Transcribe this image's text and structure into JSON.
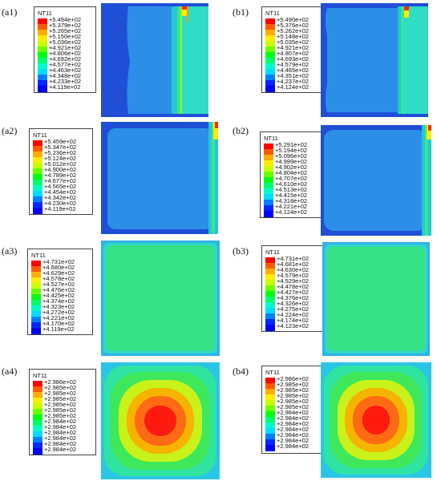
{
  "panels": [
    {
      "label": "(a1)",
      "title": "NT11",
      "values": [
        "+5.494e+02",
        "+5.379e+02",
        "+5.265e+02",
        "+5.150e+02",
        "+5.036e+02",
        "+4.921e+02",
        "+4.806e+02",
        "+4.692e+02",
        "+4.577e+02",
        "+4.463e+02",
        "+4.348e+02",
        "+4.233e+02",
        "+4.119e+02"
      ]
    },
    {
      "label": "(b1)",
      "title": "NT11",
      "values": [
        "+5.490e+02",
        "+5.376e+02",
        "+5.262e+02",
        "+5.148e+02",
        "+5.035e+02",
        "+4.921e+02",
        "+4.807e+02",
        "+4.693e+02",
        "+4.579e+02",
        "+4.465e+02",
        "+4.351e+02",
        "+4.237e+02",
        "+4.124e+02"
      ]
    },
    {
      "label": "(a2)",
      "title": "NT11",
      "values": [
        "+5.459e+02",
        "+5.347e+02",
        "+5.236e+02",
        "+5.124e+02",
        "+5.012e+02",
        "+4.900e+02",
        "+4.789e+02",
        "+4.677e+02",
        "+4.565e+02",
        "+4.454e+02",
        "+4.342e+02",
        "+4.230e+02",
        "+4.119e+02"
      ]
    },
    {
      "label": "(b2)",
      "title": "NT11",
      "values": [
        "+5.291e+02",
        "+5.194e+02",
        "+5.096e+02",
        "+4.999e+02",
        "+4.902e+02",
        "+4.804e+02",
        "+4.707e+02",
        "+4.610e+02",
        "+4.513e+02",
        "+4.415e+02",
        "+4.318e+02",
        "+4.221e+02",
        "+4.124e+02"
      ]
    },
    {
      "label": "(a3)",
      "title": "NT11",
      "values": [
        "+4.731e+02",
        "+4.680e+02",
        "+4.629e+02",
        "+4.578e+02",
        "+4.527e+02",
        "+4.476e+02",
        "+4.425e+02",
        "+4.374e+02",
        "+4.323e+02",
        "+4.272e+02",
        "+4.221e+02",
        "+4.170e+02",
        "+4.119e+02"
      ]
    },
    {
      "label": "(b3)",
      "title": "NT11",
      "values": [
        "+4.731e+02",
        "+4.681e+02",
        "+4.630e+02",
        "+4.579e+02",
        "+4.529e+02",
        "+4.478e+02",
        "+4.427e+02",
        "+4.376e+02",
        "+4.326e+02",
        "+4.275e+02",
        "+4.224e+02",
        "+4.174e+02",
        "+4.123e+02"
      ]
    },
    {
      "label": "(a4)",
      "title": "NT11",
      "values": [
        "+2.986e+02",
        "+2.985e+02",
        "+2.985e+02",
        "+2.985e+02",
        "+2.985e+02",
        "+2.985e+02",
        "+2.985e+02",
        "+2.984e+02",
        "+2.984e+02",
        "+2.984e+02",
        "+2.984e+02",
        "+2.984e+02",
        "+2.984e+02"
      ]
    },
    {
      "label": "(b4)",
      "title": "NT11",
      "values": [
        "+2.986e+02",
        "+2.985e+02",
        "+2.985e+02",
        "+2.985e+02",
        "+2.985e+02",
        "+2.985e+02",
        "+2.984e+02",
        "+2.984e+02",
        "+2.984e+02",
        "+2.984e+02",
        "+2.984e+02",
        "+2.984e+02",
        "+2.984e+02"
      ]
    }
  ],
  "colors": {
    "contour_scale": [
      "#ff0000",
      "#ff5a00",
      "#ffad00",
      "#ffec00",
      "#c6ff00",
      "#6cff00",
      "#00ff12",
      "#00ff6c",
      "#00ffc6",
      "#00dcff",
      "#0080ff",
      "#0028ff",
      "#0000ff"
    ],
    "plot_dark_blue": "#1f4fd6",
    "plot_light_blue": "#2aa6e6",
    "plot_cyan": "#27d6c6",
    "plot_teal": "#37e0a8",
    "plot_green": "#2fe56a"
  }
}
